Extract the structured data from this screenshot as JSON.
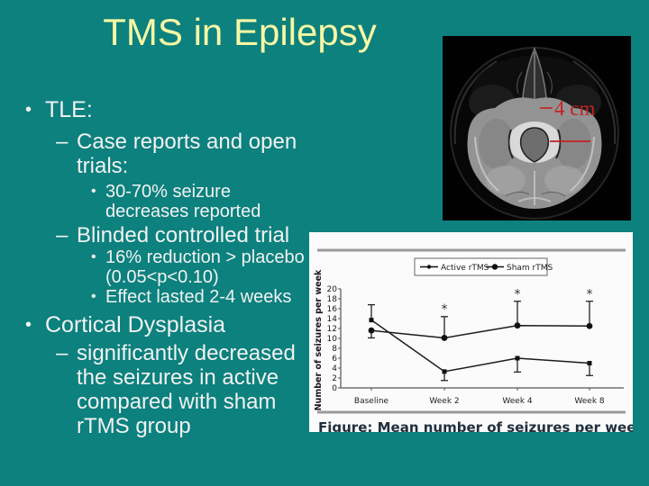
{
  "slide": {
    "title": "TMS in Epilepsy",
    "bullets": [
      {
        "level": 1,
        "text": "TLE:"
      },
      {
        "level": 2,
        "text": "Case reports and open trials:"
      },
      {
        "level": 3,
        "text": "30-70% seizure decreases reported"
      },
      {
        "level": 2,
        "text": "Blinded controlled trial"
      },
      {
        "level": 3,
        "text": "16% reduction > placebo (0.05<p<0.10)"
      },
      {
        "level": 3,
        "text": "Effect lasted 2-4 weeks"
      },
      {
        "level": 1,
        "text": "Cortical Dysplasia"
      },
      {
        "level": 2,
        "text": "significantly decreased the seizures in active compared with sham rTMS group"
      }
    ],
    "colors": {
      "background": "#0c817e",
      "title_text": "#f7f7a5",
      "body_text": "#f2f2f2",
      "annotation_red": "#c32222"
    }
  },
  "mri": {
    "annotation_label": "4 cm"
  },
  "chart_data": {
    "type": "line",
    "categories": [
      "Baseline",
      "Week 2",
      "Week 4",
      "Week 8"
    ],
    "series": [
      {
        "name": "Active rTMS",
        "marker": "square",
        "values": [
          13.7,
          3.3,
          6.0,
          5.0
        ],
        "err_low": [
          0,
          1.8,
          2.8,
          2.5
        ],
        "err_high": [
          3.1,
          0,
          0,
          0
        ]
      },
      {
        "name": "Sham rTMS",
        "marker": "circle",
        "values": [
          11.6,
          10.1,
          12.6,
          12.5
        ],
        "err_low": [
          1.5,
          0,
          0,
          0
        ],
        "err_high": [
          0,
          4.3,
          4.9,
          5.0
        ]
      }
    ],
    "ylabel": "Number of seizures per week",
    "ylim": [
      0,
      20
    ],
    "ytick_step": 2,
    "grid": false,
    "legend_position": "top",
    "significance": [
      {
        "category_index": 1,
        "y": 16
      },
      {
        "category_index": 2,
        "y": 19
      },
      {
        "category_index": 3,
        "y": 19
      }
    ],
    "caption_clipped": "Figure: Mean number of seizures per week before and after rTMS"
  }
}
